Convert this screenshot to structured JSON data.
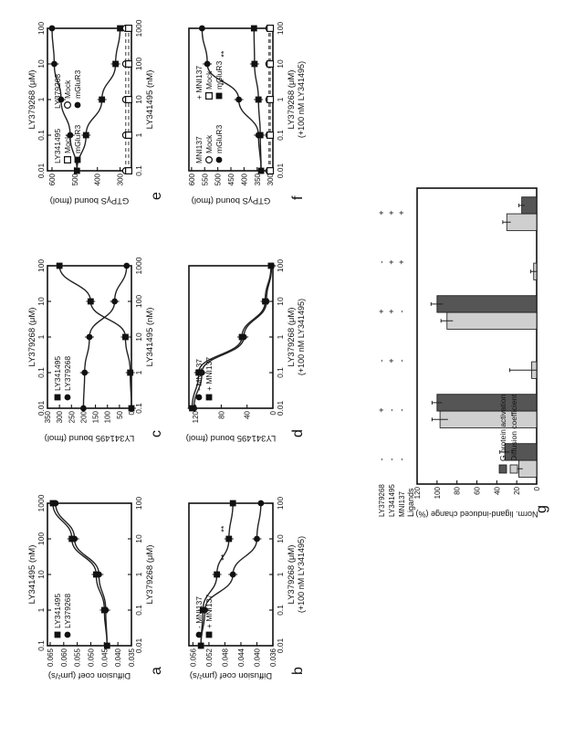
{
  "panel_letters": [
    "a",
    "b",
    "c",
    "d",
    "e",
    "f",
    "g"
  ],
  "chart_data": [
    {
      "id": "a",
      "type": "line",
      "letter": "a",
      "top_xlabel": "LY341495 (nM)",
      "xlabel": "LY379268 (μM)",
      "xlabel2": "",
      "ylabel": "Diffusion coef (μm²/s)",
      "xlim": [
        0.1,
        1000
      ],
      "top_xticks": [
        "0.1",
        "1",
        "10",
        "100",
        "1000"
      ],
      "xticks": [
        "0.01",
        "0.1",
        "1",
        "10",
        "100"
      ],
      "ylim": [
        0.035,
        0.066
      ],
      "yticks": [
        {
          "v": 0.035,
          "label": "0.035"
        },
        {
          "v": 0.04,
          "label": "0.040"
        },
        {
          "v": 0.045,
          "label": "0.045"
        },
        {
          "v": 0.05,
          "label": "0.050"
        },
        {
          "v": 0.055,
          "label": "0.055"
        },
        {
          "v": 0.06,
          "label": "0.060"
        },
        {
          "v": 0.065,
          "label": "0.065"
        }
      ],
      "legend": [
        {
          "marker": "square",
          "label": "LY341495"
        },
        {
          "marker": "circle",
          "label": "LY379268"
        }
      ],
      "series": [
        {
          "marker": "square",
          "x": [
            0.1,
            1,
            10,
            100,
            1000
          ],
          "y": [
            0.044,
            0.045,
            0.048,
            0.057,
            0.064
          ]
        },
        {
          "marker": "circle",
          "x": [
            0.1,
            1,
            10,
            100,
            1000
          ],
          "y": [
            0.044,
            0.0445,
            0.047,
            0.056,
            0.063
          ]
        }
      ]
    },
    {
      "id": "b",
      "type": "line",
      "letter": "b",
      "top_xlabel": "",
      "xlabel": "LY379268 (μM)",
      "xlabel2": "(+100 nM LY341495)",
      "ylabel": "Diffusion coef (μm²/s)",
      "xlim": [
        0.01,
        100
      ],
      "top_xticks": [],
      "xticks": [
        "0.01",
        "0.1",
        "1",
        "10",
        "100"
      ],
      "ylim": [
        0.036,
        0.057
      ],
      "yticks": [
        {
          "v": 0.036,
          "label": "0.036"
        },
        {
          "v": 0.04,
          "label": "0.040"
        },
        {
          "v": 0.044,
          "label": "0.044"
        },
        {
          "v": 0.048,
          "label": "0.048"
        },
        {
          "v": 0.052,
          "label": "0.052"
        },
        {
          "v": 0.056,
          "label": "0.056"
        }
      ],
      "legend": [
        {
          "marker": "circle",
          "label": "- MNI137"
        },
        {
          "marker": "square",
          "label": "+ MNI137"
        }
      ],
      "annotations": [
        "**",
        "**"
      ],
      "series": [
        {
          "marker": "circle",
          "x": [
            0.01,
            0.1,
            1,
            10,
            100
          ],
          "y": [
            0.054,
            0.053,
            0.046,
            0.04,
            0.039
          ]
        },
        {
          "marker": "square",
          "x": [
            0.01,
            0.1,
            1,
            10,
            100
          ],
          "y": [
            0.054,
            0.0535,
            0.05,
            0.047,
            0.046
          ]
        }
      ]
    },
    {
      "id": "c",
      "type": "line",
      "letter": "c",
      "top_xlabel": "LY379268 (μM)",
      "xlabel": "LY341495 (nM)",
      "xlabel2": "",
      "ylabel": "LY341495 bound (fmol)",
      "xlim": [
        0.01,
        100
      ],
      "top_xticks": [
        "0.01",
        "0.1",
        "1",
        "10",
        "100"
      ],
      "xticks": [
        "0.1",
        "1",
        "10",
        "100",
        "1000"
      ],
      "ylim": [
        0,
        350
      ],
      "yticks": [
        {
          "v": 0,
          "label": "0"
        },
        {
          "v": 50,
          "label": "50"
        },
        {
          "v": 100,
          "label": "100"
        },
        {
          "v": 150,
          "label": "150"
        },
        {
          "v": 200,
          "label": "200"
        },
        {
          "v": 250,
          "label": "250"
        },
        {
          "v": 300,
          "label": "300"
        },
        {
          "v": 350,
          "label": "350"
        }
      ],
      "legend": [
        {
          "marker": "square",
          "label": "LY341495"
        },
        {
          "marker": "circle",
          "label": "LY379268"
        }
      ],
      "series": [
        {
          "marker": "square",
          "x": [
            0.01,
            0.1,
            1,
            10,
            100
          ],
          "y": [
            0,
            5,
            25,
            170,
            300
          ]
        },
        {
          "marker": "circle",
          "x": [
            0.01,
            0.1,
            1,
            10,
            100
          ],
          "y": [
            200,
            195,
            175,
            70,
            20
          ]
        }
      ]
    },
    {
      "id": "d",
      "type": "line",
      "letter": "d",
      "top_xlabel": "",
      "xlabel": "LY379268 (μM)",
      "xlabel2": "(+100 nM LY341495)",
      "ylabel": "LY341495 bound (fmol)",
      "xlim": [
        0.01,
        100
      ],
      "top_xticks": [],
      "xticks": [
        "0.01",
        "0.1",
        "1",
        "10",
        "100"
      ],
      "ylim": [
        0,
        130
      ],
      "yticks": [
        {
          "v": 0,
          "label": "0"
        },
        {
          "v": 40,
          "label": "40"
        },
        {
          "v": 80,
          "label": "80"
        },
        {
          "v": 120,
          "label": "120"
        }
      ],
      "legend": [
        {
          "marker": "circle",
          "label": "- MNI137"
        },
        {
          "marker": "square",
          "label": "+ MNI137"
        }
      ],
      "series": [
        {
          "marker": "circle",
          "x": [
            0.01,
            0.1,
            1,
            10,
            100
          ],
          "y": [
            122,
            110,
            45,
            10,
            2
          ]
        },
        {
          "marker": "square",
          "x": [
            0.01,
            0.1,
            1,
            10,
            100
          ],
          "y": [
            125,
            115,
            48,
            12,
            3
          ]
        }
      ]
    },
    {
      "id": "e",
      "type": "line",
      "letter": "e",
      "top_xlabel": "LY379268 (μM)",
      "xlabel": "LY341495 (nM)",
      "xlabel2": "",
      "ylabel": "GTPγS bound (fmol)",
      "xlim": [
        0.01,
        100
      ],
      "top_xticks": [
        "0.01",
        "0.1",
        "1",
        "10",
        "100"
      ],
      "xticks": [
        "0.1",
        "1",
        "10",
        "100",
        "1000"
      ],
      "ylim": [
        250,
        620
      ],
      "yticks": [
        {
          "v": 300,
          "label": "300"
        },
        {
          "v": 400,
          "label": "400"
        },
        {
          "v": 500,
          "label": "500"
        },
        {
          "v": 600,
          "label": "600"
        }
      ],
      "legend": [
        {
          "marker": "",
          "label": "LY341495"
        },
        {
          "marker": "open-square",
          "label": "Mock"
        },
        {
          "marker": "square",
          "label": "mGluR3"
        },
        {
          "marker": "",
          "label": "LY379268"
        },
        {
          "marker": "open-circle",
          "label": "Mock"
        },
        {
          "marker": "circle",
          "label": "mGluR3"
        }
      ],
      "series": [
        {
          "marker": "circle",
          "x": [
            0.01,
            0.1,
            1,
            10,
            100
          ],
          "y": [
            490,
            520,
            560,
            590,
            600
          ]
        },
        {
          "marker": "square",
          "x": [
            0.01,
            0.1,
            1,
            10,
            100
          ],
          "y": [
            490,
            450,
            380,
            320,
            300
          ]
        },
        {
          "marker": "open-circle",
          "dashed": true,
          "x": [
            0.01,
            0.1,
            1,
            10,
            100
          ],
          "y": [
            275,
            275,
            275,
            275,
            275
          ]
        },
        {
          "marker": "open-square",
          "dashed": true,
          "x": [
            0.01,
            0.1,
            1,
            10,
            100
          ],
          "y": [
            262,
            262,
            262,
            262,
            262
          ]
        }
      ]
    },
    {
      "id": "f",
      "type": "line",
      "letter": "f",
      "top_xlabel": "",
      "xlabel": "LY379268 (μM)",
      "xlabel2": "(+100 nM LY341495)",
      "ylabel": "GTPγS bound (fmol)",
      "xlim": [
        0.01,
        100
      ],
      "top_xticks": [],
      "xticks": [
        "0.01",
        "0.1",
        "1",
        "10",
        "100"
      ],
      "ylim": [
        290,
        610
      ],
      "yticks": [
        {
          "v": 300,
          "label": "300"
        },
        {
          "v": 350,
          "label": "350"
        },
        {
          "v": 400,
          "label": "400"
        },
        {
          "v": 450,
          "label": "450"
        },
        {
          "v": 500,
          "label": "500"
        },
        {
          "v": 550,
          "label": "550"
        },
        {
          "v": 600,
          "label": "600"
        }
      ],
      "legend_left": [
        {
          "marker": "",
          "label": "MNI137"
        },
        {
          "marker": "open-circle",
          "label": "Mock"
        },
        {
          "marker": "circle",
          "label": "mGluR3"
        }
      ],
      "legend_right": [
        {
          "marker": "",
          "label": "+ MNI137"
        },
        {
          "marker": "open-square",
          "label": "Mock"
        },
        {
          "marker": "square",
          "label": "mGluR3"
        }
      ],
      "annotations": [
        "**",
        "**"
      ],
      "series": [
        {
          "marker": "circle",
          "x": [
            0.01,
            0.1,
            1,
            10,
            100
          ],
          "y": [
            335,
            345,
            420,
            540,
            560
          ]
        },
        {
          "marker": "square",
          "x": [
            0.01,
            0.1,
            1,
            10,
            100
          ],
          "y": [
            335,
            338,
            345,
            360,
            362
          ]
        },
        {
          "marker": "open-circle",
          "dashed": true,
          "x": [
            0.01,
            0.1,
            1,
            10,
            100
          ],
          "y": [
            305,
            305,
            305,
            305,
            305
          ]
        },
        {
          "marker": "open-square",
          "dashed": true,
          "x": [
            0.01,
            0.1,
            1,
            10,
            100
          ],
          "y": [
            300,
            300,
            300,
            300,
            300
          ]
        }
      ]
    },
    {
      "id": "g",
      "type": "bar",
      "letter": "g",
      "ylabel": "Norm. ligand-induced change (%)",
      "ylim": [
        0,
        120
      ],
      "yticks": [
        "0",
        "20",
        "40",
        "60",
        "80",
        "100",
        "120"
      ],
      "row_labels": [
        "LY379268",
        "LY341495",
        "MNI137"
      ],
      "ligands_label": "Ligands",
      "legend": [
        {
          "fill": "diffusion",
          "label": "Diffusion coefficient"
        },
        {
          "fill": "gprotein",
          "label": "G protein activation"
        }
      ],
      "categories": [
        "1",
        "2",
        "3",
        "4",
        "5",
        "6"
      ],
      "conditions": [
        [
          "-",
          "-",
          "-"
        ],
        [
          "+",
          "-",
          "-"
        ],
        [
          "-",
          "+",
          "-"
        ],
        [
          "+",
          "+",
          "-"
        ],
        [
          "-",
          "+",
          "+"
        ],
        [
          "+",
          "+",
          "+"
        ]
      ],
      "series": [
        {
          "name": "Diffusion coefficient",
          "values": [
            18,
            97,
            5,
            90,
            3,
            30
          ],
          "errors": [
            4,
            8,
            22,
            6,
            3,
            4
          ]
        },
        {
          "name": "G protein activation",
          "values": [
            32,
            100,
            0,
            100,
            0,
            15
          ],
          "errors": [
            5,
            5,
            0,
            6,
            0,
            3
          ]
        }
      ]
    }
  ]
}
